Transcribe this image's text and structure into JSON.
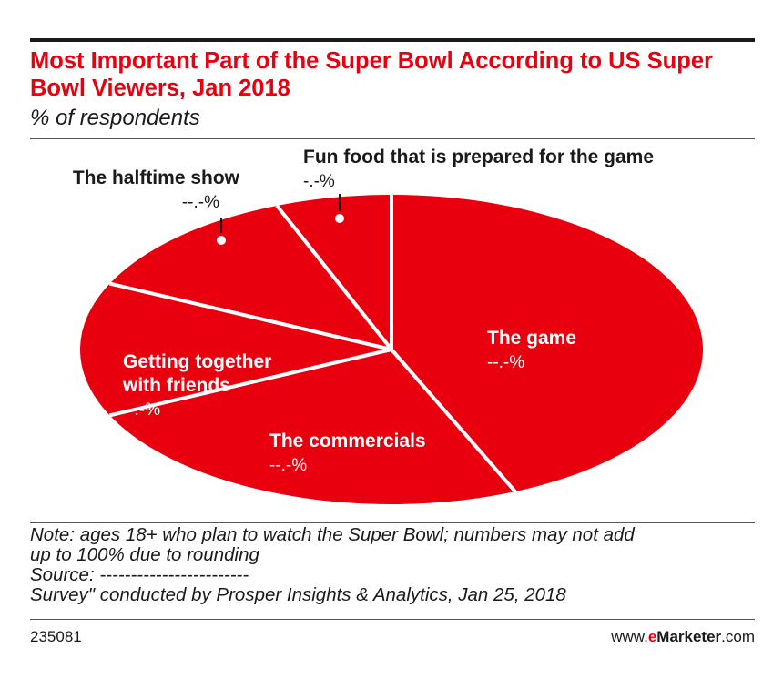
{
  "colors": {
    "slice": "#e8000f",
    "title": "#e8000f",
    "brand_accent": "#e8000f",
    "text": "#1a1a1a"
  },
  "chart_data": {
    "type": "pie",
    "title": "Most Important Part of the Super Bowl According to US Super Bowl Viewers, Jan 2018",
    "subtitle": "% of respondents",
    "slices": [
      {
        "label": "The game",
        "value_text": "--.-%",
        "value": 43.5
      },
      {
        "label": "The commercials",
        "value_text": "--.-%",
        "value": 24.5
      },
      {
        "label": "Getting together with friends",
        "value_text": "--.-%",
        "value": 14.0
      },
      {
        "label": "The halftime show",
        "value_text": "--.-%",
        "value": 12.0
      },
      {
        "label": "Fun food that is prepared for the game",
        "value_text": "-.-%",
        "value": 6.0
      }
    ]
  },
  "note": {
    "line1": "Note: ages 18+ who plan to watch the Super Bowl; numbers may not add",
    "line2": "up to 100% due to rounding",
    "line3": "Source: ------------------------",
    "line4": "Survey\" conducted by Prosper Insights & Analytics, Jan 25, 2018"
  },
  "footer": {
    "chart_id": "235081",
    "brand_prefix": "www.",
    "brand_e": "e",
    "brand_marketer": "Marketer",
    "brand_suffix": ".com"
  }
}
